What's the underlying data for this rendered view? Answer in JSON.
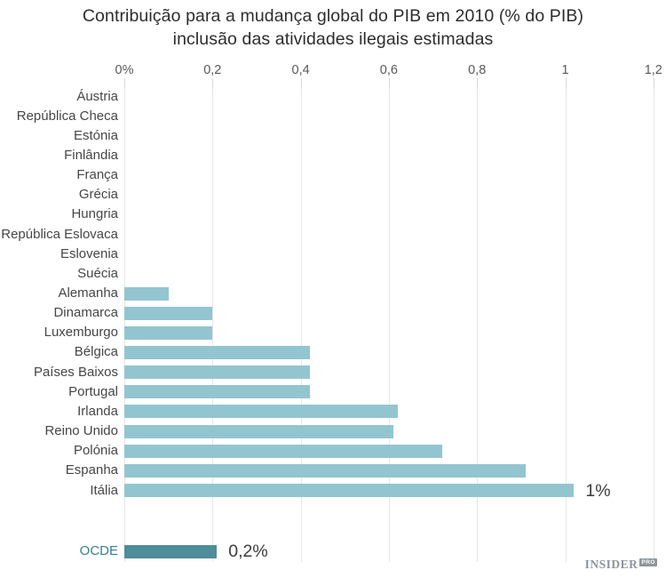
{
  "title": {
    "line1": "Contribuição para a mudança global do PIB em 2010 (% do PIB)",
    "line2": "inclusão das atividades ilegais estimadas"
  },
  "chart_data": {
    "type": "bar",
    "orientation": "horizontal",
    "title": "Contribuição para a mudança global do PIB em 2010 (% do PIB) inclusão das atividades ilegais estimadas",
    "xlabel": "",
    "ylabel": "",
    "xlim": [
      0,
      1.2
    ],
    "grid": true,
    "legend": false,
    "x_axis": {
      "tick_labels": [
        "0%",
        "0,2",
        "0,4",
        "0,6",
        "0,8",
        "1",
        "1,2"
      ],
      "tick_values": [
        0,
        0.2,
        0.4,
        0.6,
        0.8,
        1.0,
        1.2
      ]
    },
    "categories": [
      "Áustria",
      "República Checa",
      "Estónia",
      "Finlândia",
      "França",
      "Grécia",
      "Hungria",
      "República Eslovaca",
      "Eslovenia",
      "Suécia",
      "Alemanha",
      "Dinamarca",
      "Luxemburgo",
      "Bélgica",
      "Países Baixos",
      "Portugal",
      "Irlanda",
      "Reino Unido",
      "Polónia",
      "Espanha",
      "Itália"
    ],
    "values": [
      0,
      0,
      0,
      0,
      0,
      0,
      0,
      0,
      0,
      0,
      0.1,
      0.2,
      0.2,
      0.42,
      0.42,
      0.42,
      0.62,
      0.61,
      0.72,
      0.91,
      1.02
    ],
    "annotations": [
      {
        "category": "Itália",
        "label": "1%"
      }
    ],
    "summary_row": {
      "category": "OCDE",
      "value": 0.21,
      "label": "0,2%"
    },
    "colors": {
      "bar": "#93c5d1",
      "summary_bar": "#4e8d99",
      "summary_label_text": "#36818f",
      "gridline": "#e6e6e6",
      "tick": "#d8d8d8",
      "axis_text": "#595959",
      "category_text": "#464646",
      "value_text": "#3b3b3b",
      "title_text": "#2d2d2d"
    }
  },
  "watermark": {
    "brand": "INSIDER",
    "badge": "PRO"
  }
}
